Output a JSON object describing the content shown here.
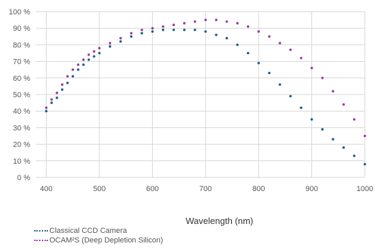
{
  "chart_data": {
    "type": "scatter",
    "title": "",
    "xlabel": "Wavelength (nm)",
    "ylabel": "",
    "xlim": [
      380,
      1000
    ],
    "ylim": [
      0,
      100
    ],
    "x_ticks": [
      400,
      500,
      600,
      700,
      800,
      900,
      1000
    ],
    "x_tick_labels": [
      "400",
      "500",
      "600",
      "700",
      "800",
      "900",
      "1000"
    ],
    "y_ticks": [
      0,
      10,
      20,
      30,
      40,
      50,
      60,
      70,
      80,
      90,
      100
    ],
    "y_tick_labels": [
      "0 %",
      "10 %",
      "20 %",
      "30 %",
      "40 %",
      "50 %",
      "60 %",
      "70 %",
      "80 %",
      "90 %",
      "100 %"
    ],
    "grid": true,
    "legend_position": "bottom-left",
    "series": [
      {
        "name": "Classical CCD Camera",
        "color": "#1b5f86",
        "x": [
          400,
          410,
          420,
          430,
          440,
          450,
          460,
          470,
          480,
          490,
          500,
          520,
          540,
          560,
          580,
          600,
          620,
          640,
          660,
          680,
          700,
          720,
          740,
          760,
          780,
          800,
          820,
          840,
          860,
          880,
          900,
          920,
          940,
          960,
          980,
          1000
        ],
        "y": [
          40,
          45,
          48,
          53,
          57,
          61,
          65,
          68,
          71,
          73,
          75,
          79,
          82,
          85,
          87,
          88,
          89,
          89,
          89,
          89,
          88,
          86,
          84,
          80,
          75,
          69,
          63,
          56,
          49,
          42,
          35,
          29,
          23,
          18,
          13,
          8
        ]
      },
      {
        "name": "OCAM²S (Deep Depletion Silicon)",
        "color": "#9b3aa0",
        "x": [
          400,
          410,
          420,
          430,
          440,
          450,
          460,
          470,
          480,
          490,
          500,
          520,
          540,
          560,
          580,
          600,
          620,
          640,
          660,
          680,
          700,
          720,
          740,
          760,
          780,
          800,
          820,
          840,
          860,
          880,
          900,
          920,
          940,
          960,
          980,
          1000
        ],
        "y": [
          42,
          47,
          51,
          56,
          61,
          65,
          68,
          71,
          74,
          76,
          78,
          81,
          84,
          87,
          89,
          90,
          91,
          92,
          93,
          94,
          95,
          95,
          94,
          93,
          91,
          88,
          85,
          81,
          77,
          72,
          66,
          60,
          52,
          44,
          35,
          25
        ]
      }
    ]
  }
}
